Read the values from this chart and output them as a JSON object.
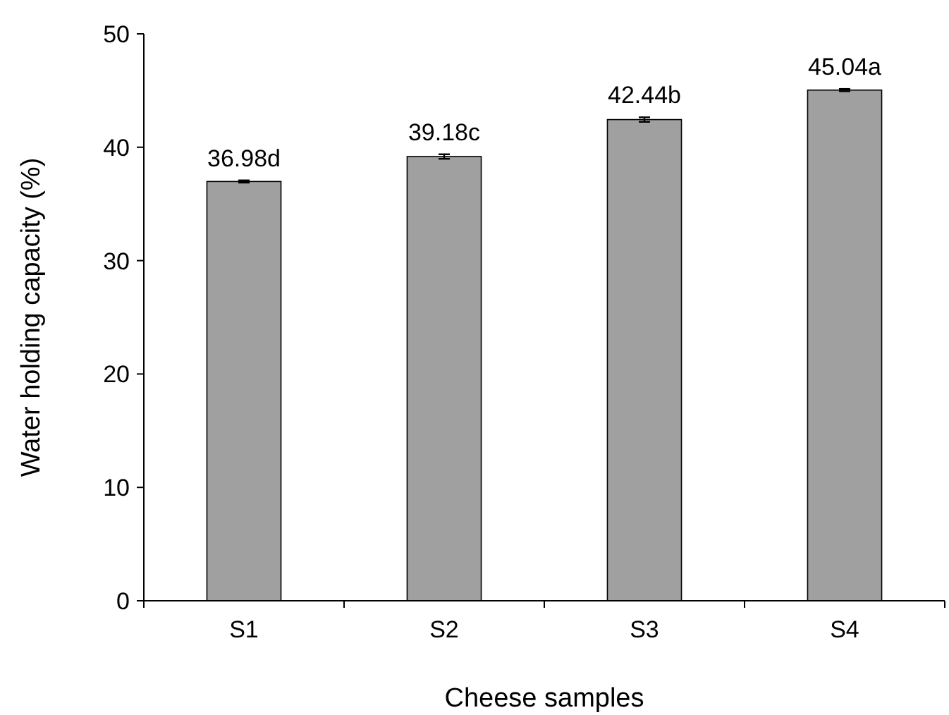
{
  "chart_data": {
    "type": "bar",
    "xlabel": "Cheese samples",
    "ylabel": "Water holding capacity (%)",
    "categories": [
      "S1",
      "S2",
      "S3",
      "S4"
    ],
    "values": [
      36.98,
      39.18,
      42.44,
      45.04
    ],
    "value_labels": [
      "36.98d",
      "39.18c",
      "42.44b",
      "45.04a"
    ],
    "errors": [
      0.1,
      0.2,
      0.2,
      0.1
    ],
    "color": "#a0a0a0",
    "ylim": [
      0,
      50
    ],
    "yticks": [
      0,
      10,
      20,
      30,
      40,
      50
    ],
    "grid": false
  }
}
